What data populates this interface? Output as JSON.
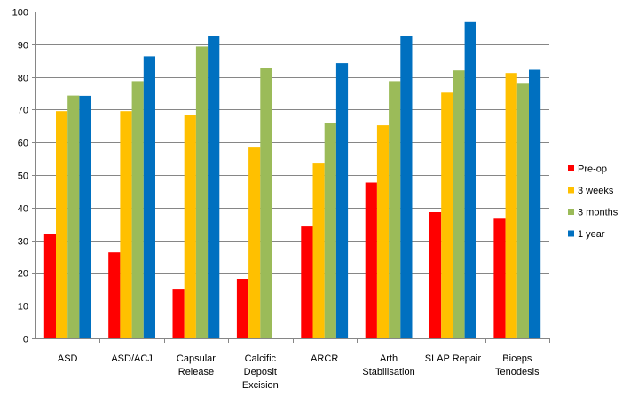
{
  "chart_data": {
    "type": "bar",
    "title": "",
    "xlabel": "",
    "ylabel": "",
    "ylim": [
      0,
      100
    ],
    "yticks": [
      0,
      10,
      20,
      30,
      40,
      50,
      60,
      70,
      80,
      90,
      100
    ],
    "grid": true,
    "legend_position": "right",
    "categories": [
      [
        "ASD"
      ],
      [
        "ASD/ACJ"
      ],
      [
        "Capsular",
        "Release"
      ],
      [
        "Calcific",
        "Deposit",
        "Excision"
      ],
      [
        "ARCR"
      ],
      [
        "Arth",
        "Stabilisation"
      ],
      [
        "SLAP Repair"
      ],
      [
        "Biceps",
        "Tenodesis"
      ]
    ],
    "series": [
      {
        "name": "Pre-op",
        "color": "#ff0000",
        "values": [
          32,
          26.3,
          15.2,
          18.2,
          34.2,
          47.7,
          38.6,
          36.6
        ]
      },
      {
        "name": "3 weeks",
        "color": "#ffc000",
        "values": [
          69.5,
          69.5,
          68.2,
          58.4,
          53.5,
          65.2,
          75.2,
          81.2
        ]
      },
      {
        "name": "3 months",
        "color": "#9bbb59",
        "values": [
          74.3,
          78.7,
          89.3,
          82.6,
          66,
          78.7,
          82,
          77.9
        ]
      },
      {
        "name": "1 year",
        "color": "#0070c0",
        "values": [
          74.2,
          86.3,
          92.6,
          null,
          84.2,
          92.5,
          96.8,
          82.2
        ]
      }
    ]
  }
}
